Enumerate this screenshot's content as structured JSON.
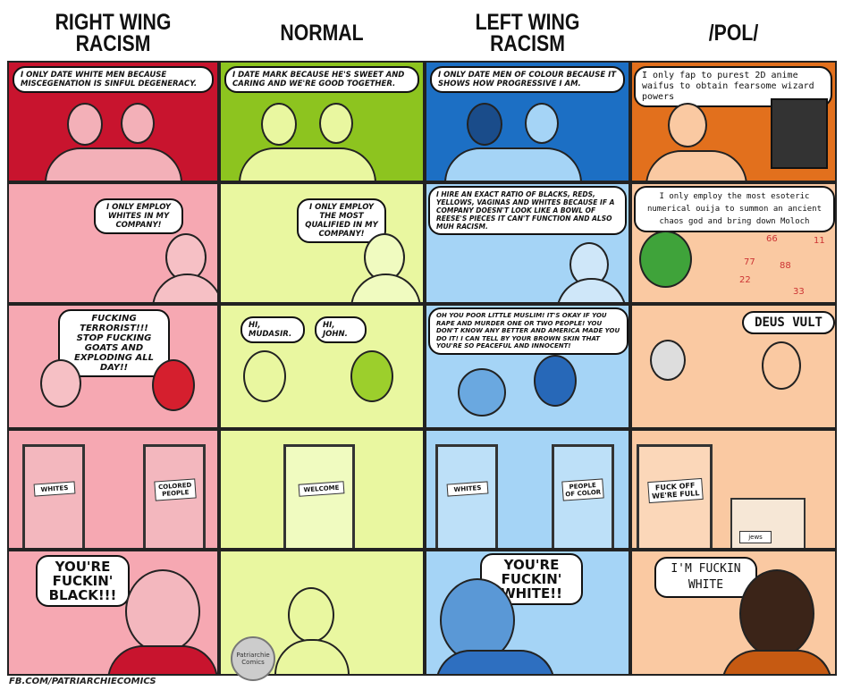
{
  "headers": [
    "RIGHT WING RACISM",
    "NORMAL",
    "LEFT WING RACISM",
    "/POL/"
  ],
  "colors": {
    "col_light": [
      "#f6a8b2",
      "#e9f7a0",
      "#a5d4f6",
      "#fac9a2"
    ],
    "col_dark": [
      "#c8142e",
      "#8dc41f",
      "#1c6fc4",
      "#e2701d"
    ]
  },
  "row1": [
    "I ONLY DATE WHITE MEN BECAUSE MISCEGENATION IS SINFUL DEGENERACY.",
    "I DATE MARK BECAUSE HE'S SWEET AND CARING AND WE'RE GOOD TOGETHER.",
    "I ONLY DATE MEN OF COLOUR BECAUSE IT SHOWS HOW PROGRESSIVE I AM.",
    "I only fap to purest 2D anime waifus to obtain fearsome wizard powers"
  ],
  "row2": [
    "I ONLY EMPLOY WHITES IN MY COMPANY!",
    "I ONLY EMPLOY THE MOST QUALIFIED IN MY COMPANY!",
    "I HIRE AN EXACT RATIO OF BLACKS, REDS, YELLOWS, VAGINAS AND WHITES BECAUSE IF A COMPANY DOESN'T LOOK LIKE A BOWL OF REESE'S PIECES IT CAN'T FUNCTION AND ALSO MUH RACISM.",
    "I only employ the most esoteric numerical ouija to summon an ancient chaos god and bring down Moloch"
  ],
  "row2_numbers": [
    "66",
    "11",
    "77",
    "88",
    "22",
    "33"
  ],
  "row3": {
    "right": "FUCKING TERRORIST!!! STOP FUCKING GOATS AND EXPLODING ALL DAY!!",
    "normal_a": "HI, MUDASIR.",
    "normal_b": "HI, JOHN.",
    "left": "OH YOU POOR LITTLE MUSLIM! IT'S OKAY IF YOU RAPE AND MURDER ONE OR TWO PEOPLE! YOU DON'T KNOW ANY BETTER AND AMERICA MADE YOU DO IT! I CAN TELL BY YOUR BROWN SKIN THAT YOU'RE SO PEACEFUL AND INNOCENT!",
    "pol": "DEUS VULT"
  },
  "row4": {
    "right": [
      "WHITES",
      "COLORED PEOPLE"
    ],
    "normal": [
      "WELCOME"
    ],
    "left": [
      "WHITES",
      "PEOPLE OF COLOR"
    ],
    "pol": [
      "FUCK OFF WE'RE FULL",
      "jews"
    ]
  },
  "row5": [
    "YOU'RE FUCKIN' BLACK!!!",
    "",
    "YOU'RE FUCKIN' WHITE!!",
    "I'M FUCKIN WHITE"
  ],
  "footer": "FB.COM/PATRIARCHIECOMICS",
  "logo": "Patriarchie Comics"
}
